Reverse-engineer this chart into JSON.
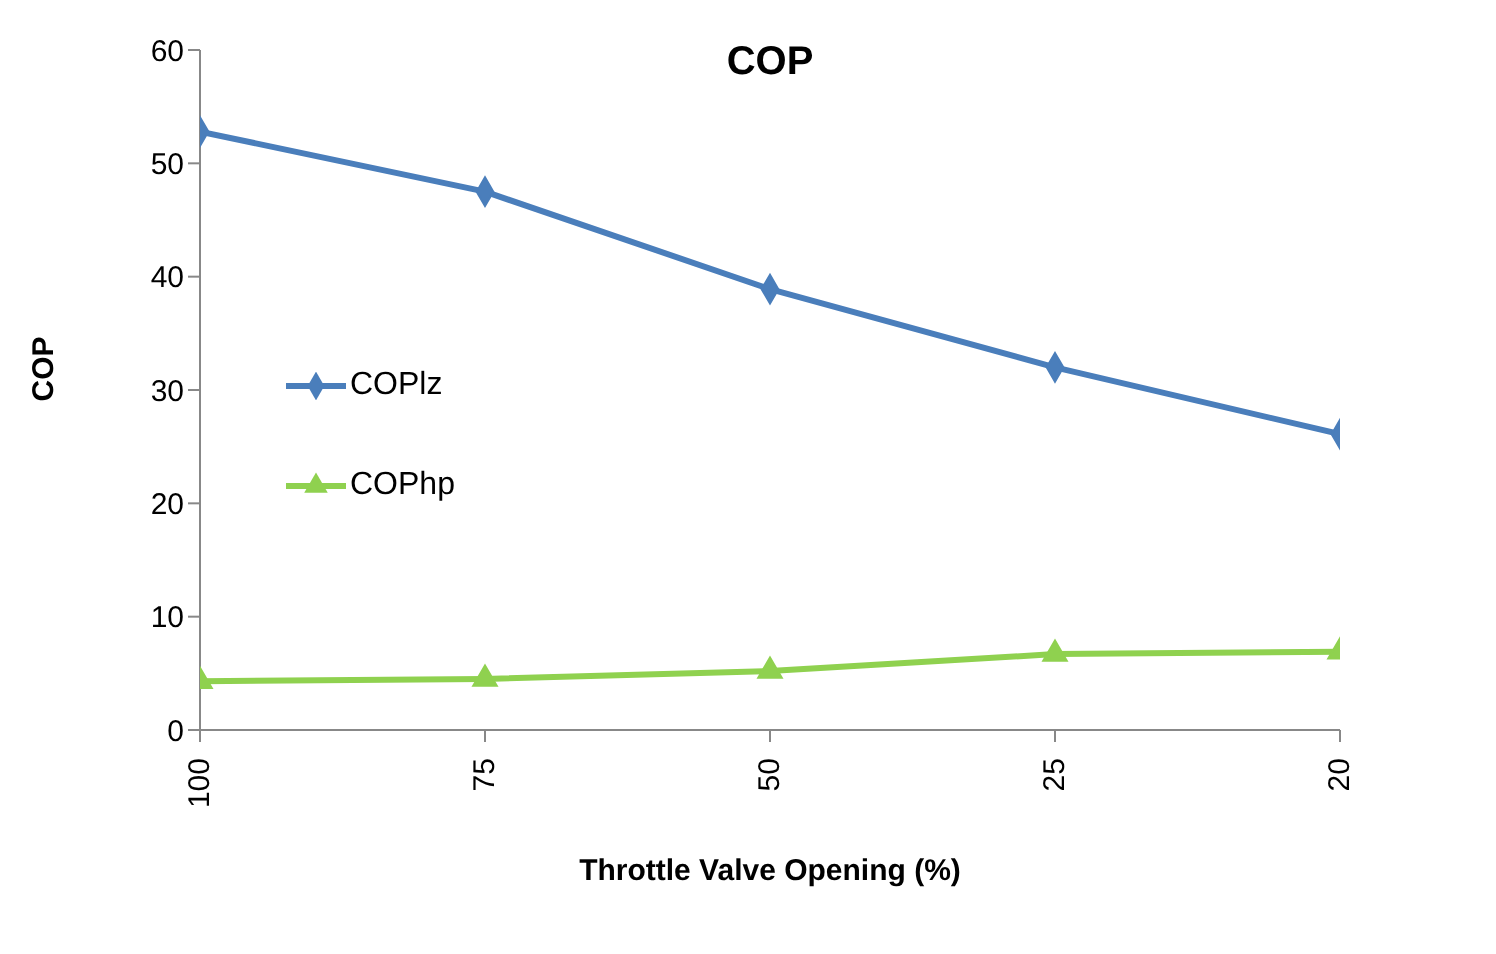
{
  "chart_data": {
    "type": "line",
    "title": "COP",
    "xlabel": "Throttle Valve Opening (%)",
    "ylabel": "COP",
    "categories": [
      "100",
      "75",
      "50",
      "25",
      "20"
    ],
    "series": [
      {
        "name": "COPlz",
        "color": "#4a7ebb",
        "marker": "diamond",
        "values": [
          52.8,
          47.5,
          38.9,
          32,
          26.1
        ]
      },
      {
        "name": "COPhp",
        "color": "#8fd14f",
        "marker": "triangle",
        "values": [
          4.3,
          4.5,
          5.2,
          6.7,
          6.9
        ]
      }
    ],
    "ylim": [
      0,
      60
    ],
    "yticks": [
      0,
      10,
      20,
      30,
      40,
      50,
      60
    ],
    "grid": false,
    "legend": "left",
    "line_style": "solid"
  }
}
